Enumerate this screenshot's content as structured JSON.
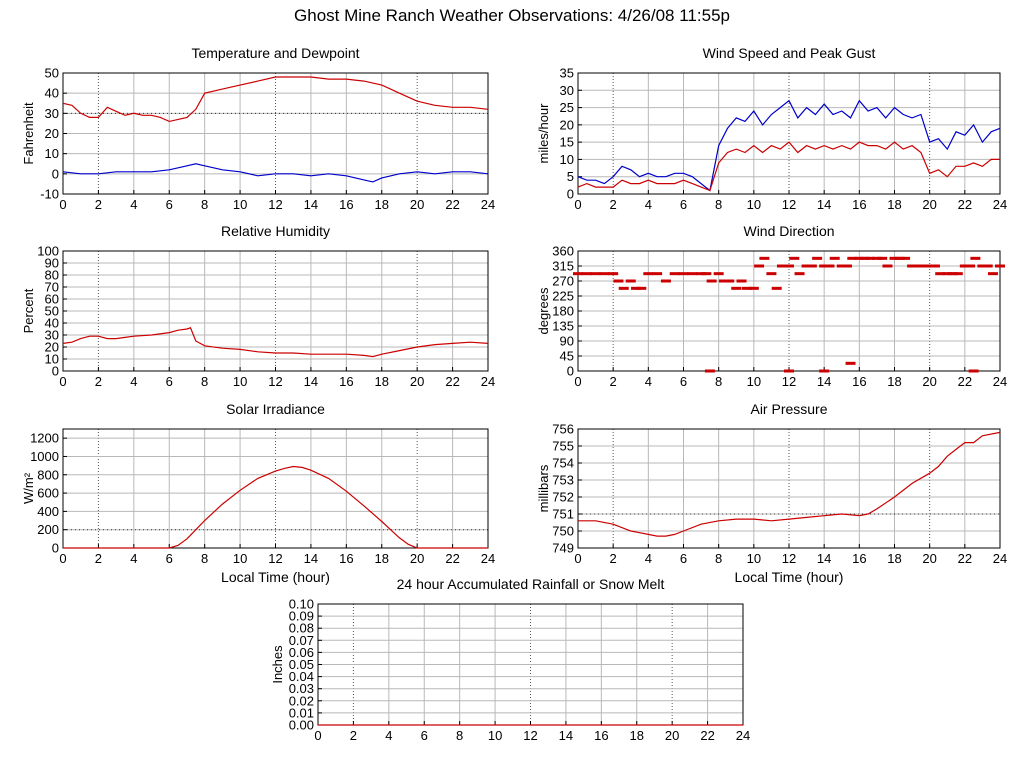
{
  "page": {
    "title": "Ghost Mine Ranch Weather Observations: 4/26/08 11:55p"
  },
  "chart_data": [
    {
      "id": "temp",
      "type": "line",
      "title": "Temperature and Dewpoint",
      "xlabel": "",
      "ylabel": "Fahrenheit",
      "xlim": [
        0,
        24
      ],
      "ylim": [
        -10,
        50
      ],
      "xticks": [
        0,
        2,
        4,
        6,
        8,
        10,
        12,
        14,
        16,
        18,
        20,
        22,
        24
      ],
      "yticks": [
        -10,
        0,
        10,
        20,
        30,
        40,
        50
      ],
      "dotted_y": [
        30
      ],
      "grid": true,
      "series": [
        {
          "color": "#cc0000",
          "x": [
            0,
            0.5,
            1,
            1.5,
            2,
            2.5,
            3,
            3.5,
            4,
            4.5,
            5,
            5.5,
            6,
            6.5,
            7,
            7.5,
            8,
            9,
            10,
            11,
            12,
            13,
            14,
            15,
            16,
            17,
            18,
            19,
            20,
            21,
            22,
            23,
            24
          ],
          "y": [
            35,
            34,
            30,
            28,
            28,
            33,
            31,
            29,
            30,
            29,
            29,
            28,
            26,
            27,
            28,
            32,
            40,
            42,
            44,
            46,
            48,
            48,
            48,
            47,
            47,
            46,
            44,
            40,
            36,
            34,
            33,
            33,
            32
          ]
        },
        {
          "color": "#0000cc",
          "x": [
            0,
            1,
            2,
            3,
            4,
            5,
            6,
            7,
            7.5,
            8,
            9,
            10,
            11,
            12,
            13,
            14,
            15,
            16,
            17,
            17.5,
            18,
            19,
            20,
            21,
            22,
            23,
            24
          ],
          "y": [
            1,
            0,
            0,
            1,
            1,
            1,
            2,
            4,
            5,
            4,
            2,
            1,
            -1,
            0,
            0,
            -1,
            0,
            -1,
            -3,
            -4,
            -2,
            0,
            1,
            0,
            1,
            1,
            0
          ]
        }
      ]
    },
    {
      "id": "wind",
      "type": "line",
      "title": "Wind Speed and Peak Gust",
      "xlabel": "",
      "ylabel": "miles/hour",
      "xlim": [
        0,
        24
      ],
      "ylim": [
        0,
        35
      ],
      "xticks": [
        0,
        2,
        4,
        6,
        8,
        10,
        12,
        14,
        16,
        18,
        20,
        22,
        24
      ],
      "yticks": [
        0,
        5,
        10,
        15,
        20,
        25,
        30,
        35
      ],
      "dotted_y": [],
      "grid": true,
      "series": [
        {
          "color": "#0000cc",
          "x": [
            0,
            0.5,
            1,
            1.5,
            2,
            2.5,
            3,
            3.5,
            4,
            4.5,
            5,
            5.5,
            6,
            6.5,
            7,
            7.5,
            8,
            8.5,
            9,
            9.5,
            10,
            10.5,
            11,
            11.5,
            12,
            12.5,
            13,
            13.5,
            14,
            14.5,
            15,
            15.5,
            16,
            16.5,
            17,
            17.5,
            18,
            18.5,
            19,
            19.5,
            20,
            20.5,
            21,
            21.5,
            22,
            22.5,
            23,
            23.5,
            24
          ],
          "y": [
            5,
            4,
            4,
            3,
            5,
            8,
            7,
            5,
            6,
            5,
            5,
            6,
            6,
            5,
            3,
            1,
            14,
            19,
            22,
            21,
            24,
            20,
            23,
            25,
            27,
            22,
            25,
            23,
            26,
            23,
            24,
            22,
            27,
            24,
            25,
            22,
            25,
            23,
            22,
            23,
            15,
            16,
            13,
            18,
            17,
            20,
            15,
            18,
            19
          ]
        },
        {
          "color": "#cc0000",
          "x": [
            0,
            0.5,
            1,
            1.5,
            2,
            2.5,
            3,
            3.5,
            4,
            4.5,
            5,
            5.5,
            6,
            6.5,
            7,
            7.5,
            8,
            8.5,
            9,
            9.5,
            10,
            10.5,
            11,
            11.5,
            12,
            12.5,
            13,
            13.5,
            14,
            14.5,
            15,
            15.5,
            16,
            16.5,
            17,
            17.5,
            18,
            18.5,
            19,
            19.5,
            20,
            20.5,
            21,
            21.5,
            22,
            22.5,
            23,
            23.5,
            24
          ],
          "y": [
            2,
            3,
            2,
            2,
            2,
            4,
            3,
            3,
            4,
            3,
            3,
            3,
            4,
            3,
            2,
            1,
            9,
            12,
            13,
            12,
            14,
            12,
            14,
            13,
            15,
            12,
            14,
            13,
            14,
            13,
            14,
            13,
            15,
            14,
            14,
            13,
            15,
            13,
            14,
            12,
            6,
            7,
            5,
            8,
            8,
            9,
            8,
            10,
            10
          ]
        }
      ]
    },
    {
      "id": "rh",
      "type": "line",
      "title": "Relative Humidity",
      "xlabel": "",
      "ylabel": "Percent",
      "xlim": [
        0,
        24
      ],
      "ylim": [
        0,
        100
      ],
      "xticks": [
        0,
        2,
        4,
        6,
        8,
        10,
        12,
        14,
        16,
        18,
        20,
        22,
        24
      ],
      "yticks": [
        0,
        10,
        20,
        30,
        40,
        50,
        60,
        70,
        80,
        90,
        100
      ],
      "dotted_y": [],
      "grid": true,
      "series": [
        {
          "color": "#cc0000",
          "x": [
            0,
            0.5,
            1,
            1.5,
            2,
            2.5,
            3,
            3.5,
            4,
            5,
            6,
            6.5,
            7,
            7.2,
            7.5,
            8,
            9,
            10,
            11,
            12,
            13,
            14,
            15,
            16,
            17,
            17.5,
            18,
            19,
            20,
            21,
            22,
            23,
            24
          ],
          "y": [
            23,
            24,
            27,
            29,
            29,
            27,
            27,
            28,
            29,
            30,
            32,
            34,
            35,
            36,
            25,
            21,
            19,
            18,
            16,
            15,
            15,
            14,
            14,
            14,
            13,
            12,
            14,
            17,
            20,
            22,
            23,
            24,
            23
          ]
        }
      ]
    },
    {
      "id": "direction",
      "type": "scatter",
      "title": "Wind Direction",
      "xlabel": "",
      "ylabel": "degrees",
      "xlim": [
        0,
        24
      ],
      "ylim": [
        0,
        360
      ],
      "xticks": [
        0,
        2,
        4,
        6,
        8,
        10,
        12,
        14,
        16,
        18,
        20,
        22,
        24
      ],
      "yticks": [
        0,
        45,
        90,
        135,
        180,
        225,
        270,
        315,
        360
      ],
      "dotted_y": [],
      "grid": true,
      "series": [
        {
          "color": "#cc0000",
          "x": [
            0,
            0.5,
            1,
            1.5,
            2,
            2.3,
            2.6,
            3,
            3.3,
            3.6,
            4,
            4.5,
            5,
            5.5,
            6,
            6.5,
            7,
            7.3,
            7.6,
            8,
            8.3,
            8.6,
            9,
            9.3,
            9.6,
            10,
            10.3,
            10.6,
            11,
            11.3,
            11.6,
            12,
            12.3,
            12.6,
            13,
            13.3,
            13.6,
            14,
            14.3,
            14.6,
            15,
            15.3,
            15.6,
            16,
            16.3,
            16.6,
            17,
            17.3,
            17.6,
            18,
            18.3,
            18.6,
            19,
            19.3,
            19.6,
            20,
            20.3,
            20.6,
            21,
            21.3,
            21.6,
            22,
            22.3,
            22.6,
            23,
            23.3,
            23.6,
            24,
            7.5,
            12,
            14,
            15.5,
            22.5
          ],
          "y": [
            292,
            292,
            292,
            292,
            292,
            270,
            248,
            270,
            248,
            248,
            292,
            292,
            270,
            292,
            292,
            292,
            292,
            292,
            270,
            292,
            270,
            270,
            248,
            270,
            248,
            248,
            315,
            338,
            292,
            248,
            315,
            315,
            338,
            292,
            315,
            315,
            338,
            315,
            315,
            338,
            315,
            315,
            338,
            338,
            338,
            338,
            338,
            338,
            315,
            338,
            338,
            338,
            315,
            315,
            315,
            315,
            315,
            292,
            292,
            292,
            292,
            315,
            315,
            338,
            315,
            315,
            292,
            315,
            0,
            0,
            0,
            23,
            0
          ]
        }
      ]
    },
    {
      "id": "solar",
      "type": "line",
      "title": "Solar Irradiance",
      "xlabel": "Local Time (hour)",
      "ylabel": "W/m²",
      "xlim": [
        0,
        24
      ],
      "ylim": [
        0,
        1300
      ],
      "xticks": [
        0,
        2,
        4,
        6,
        8,
        10,
        12,
        14,
        16,
        18,
        20,
        22,
        24
      ],
      "yticks": [
        0,
        200,
        400,
        600,
        800,
        1000,
        1200
      ],
      "dotted_y": [
        200
      ],
      "grid": true,
      "series": [
        {
          "color": "#cc0000",
          "x": [
            0,
            2,
            4,
            6,
            6.5,
            7,
            7.5,
            8,
            9,
            10,
            11,
            12,
            12.5,
            13,
            13.5,
            14,
            15,
            16,
            17,
            18,
            18.5,
            19,
            19.5,
            20,
            22,
            24
          ],
          "y": [
            0,
            0,
            0,
            0,
            30,
            100,
            200,
            300,
            480,
            630,
            760,
            840,
            870,
            890,
            880,
            850,
            760,
            620,
            460,
            290,
            200,
            110,
            40,
            0,
            0,
            0
          ]
        }
      ]
    },
    {
      "id": "pressure",
      "type": "line",
      "title": "Air Pressure",
      "xlabel": "Local Time (hour)",
      "ylabel": "millibars",
      "xlim": [
        0,
        24
      ],
      "ylim": [
        749,
        756
      ],
      "xticks": [
        0,
        2,
        4,
        6,
        8,
        10,
        12,
        14,
        16,
        18,
        20,
        22,
        24
      ],
      "yticks": [
        749,
        750,
        751,
        752,
        753,
        754,
        755,
        756
      ],
      "dotted_y": [
        751
      ],
      "grid": true,
      "series": [
        {
          "color": "#cc0000",
          "x": [
            0,
            1,
            2,
            3,
            4,
            4.5,
            5,
            5.5,
            6,
            7,
            8,
            9,
            10,
            11,
            12,
            13,
            14,
            15,
            16,
            16.5,
            17,
            18,
            19,
            20,
            20.5,
            21,
            21.5,
            22,
            22.5,
            23,
            24
          ],
          "y": [
            750.6,
            750.6,
            750.4,
            750.0,
            749.8,
            749.7,
            749.7,
            749.8,
            750.0,
            750.4,
            750.6,
            750.7,
            750.7,
            750.6,
            750.7,
            750.8,
            750.9,
            751.0,
            750.9,
            751.0,
            751.3,
            752.0,
            752.8,
            753.4,
            753.8,
            754.4,
            754.8,
            755.2,
            755.2,
            755.6,
            755.8
          ]
        }
      ]
    },
    {
      "id": "rain",
      "type": "line",
      "title": "24 hour Accumulated Rainfall or Snow Melt",
      "xlabel": "",
      "ylabel": "Inches",
      "xlim": [
        0,
        24
      ],
      "ylim": [
        0,
        0.1
      ],
      "xticks": [
        0,
        2,
        4,
        6,
        8,
        10,
        12,
        14,
        16,
        18,
        20,
        22,
        24
      ],
      "yticks": [
        0.0,
        0.01,
        0.02,
        0.03,
        0.04,
        0.05,
        0.06,
        0.07,
        0.08,
        0.09,
        0.1
      ],
      "ytick_labels": [
        "0.00",
        "0.01",
        "0.02",
        "0.03",
        "0.04",
        "0.05",
        "0.06",
        "0.07",
        "0.08",
        "0.09",
        "0.10"
      ],
      "dotted_y": [],
      "grid": true,
      "series": [
        {
          "color": "#cc0000",
          "x": [
            0,
            24
          ],
          "y": [
            0,
            0
          ]
        }
      ]
    }
  ]
}
